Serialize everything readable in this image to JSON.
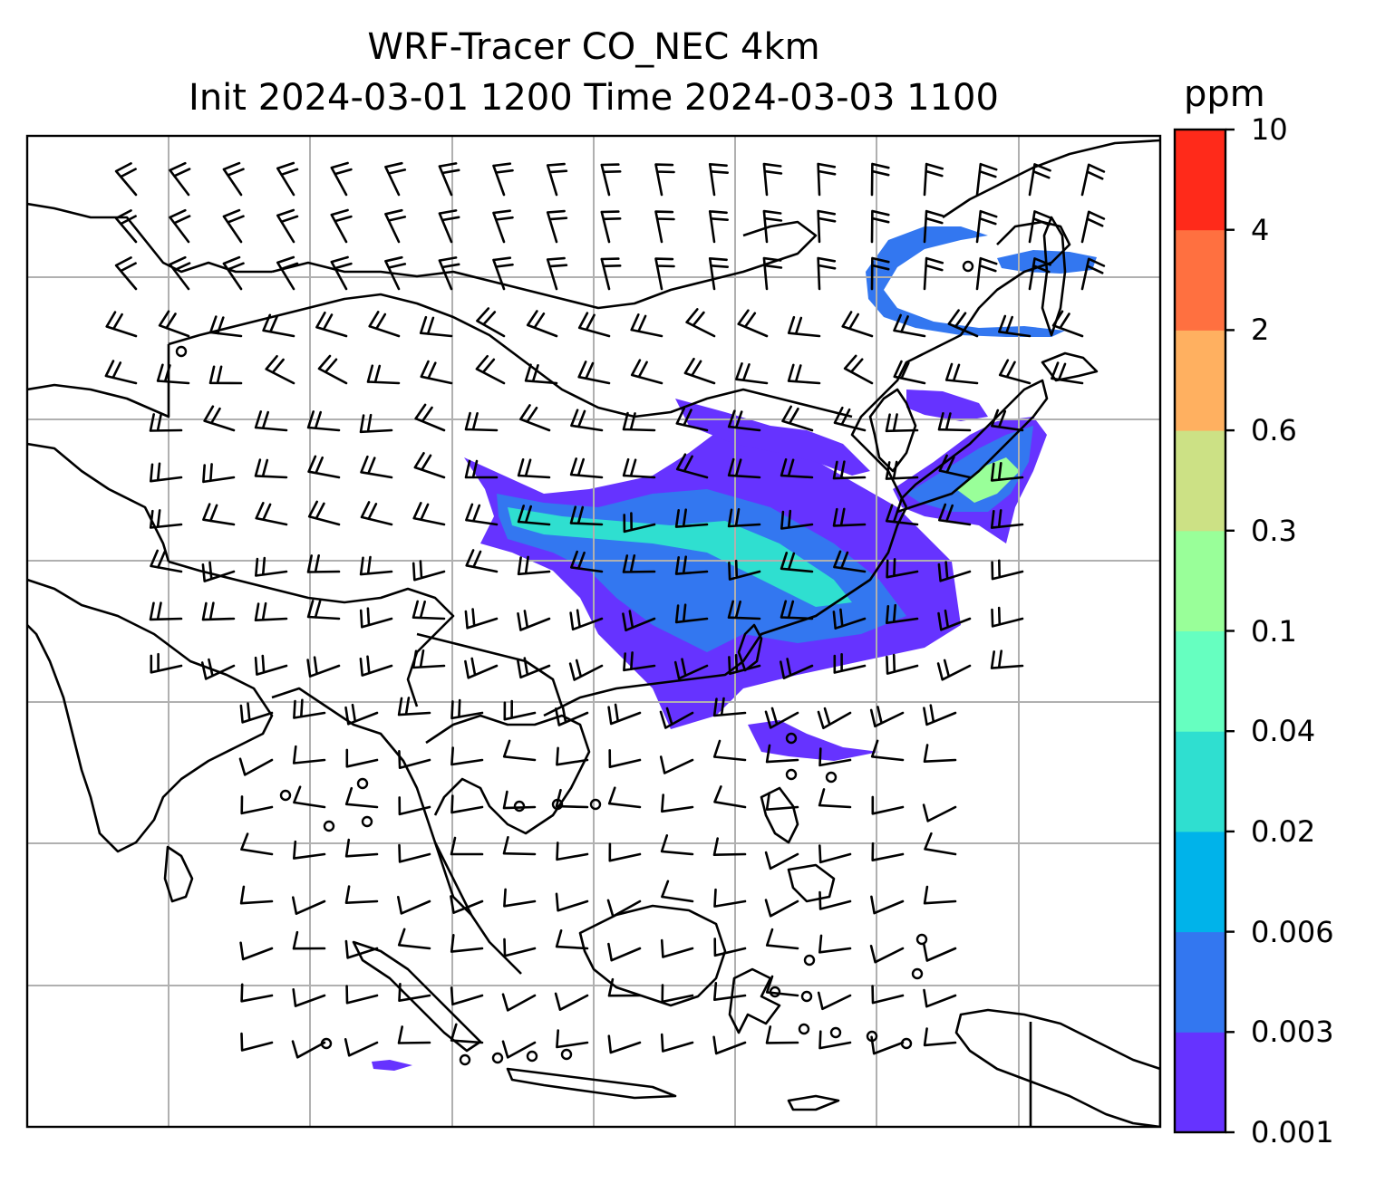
{
  "title": {
    "line1": "WRF-Tracer CO_NEC 4km",
    "line2": "Init 2024-03-01 1200 Time 2024-03-03 1100"
  },
  "colorbar": {
    "unit": "ppm",
    "levels": [
      "0.001",
      "0.003",
      "0.006",
      "0.02",
      "0.04",
      "0.1",
      "0.3",
      "0.6",
      "2",
      "4",
      "10"
    ],
    "colors": [
      "#6633ff",
      "#3377f0",
      "#00b3ea",
      "#2fdfd0",
      "#66ffc0",
      "#99ff99",
      "#cce185",
      "#ffb060",
      "#ff7040",
      "#ff2a1a"
    ]
  },
  "map": {
    "gridlines": true,
    "features": [
      "coastlines",
      "country-borders",
      "wind-barbs",
      "co-tracer-shading"
    ]
  }
}
